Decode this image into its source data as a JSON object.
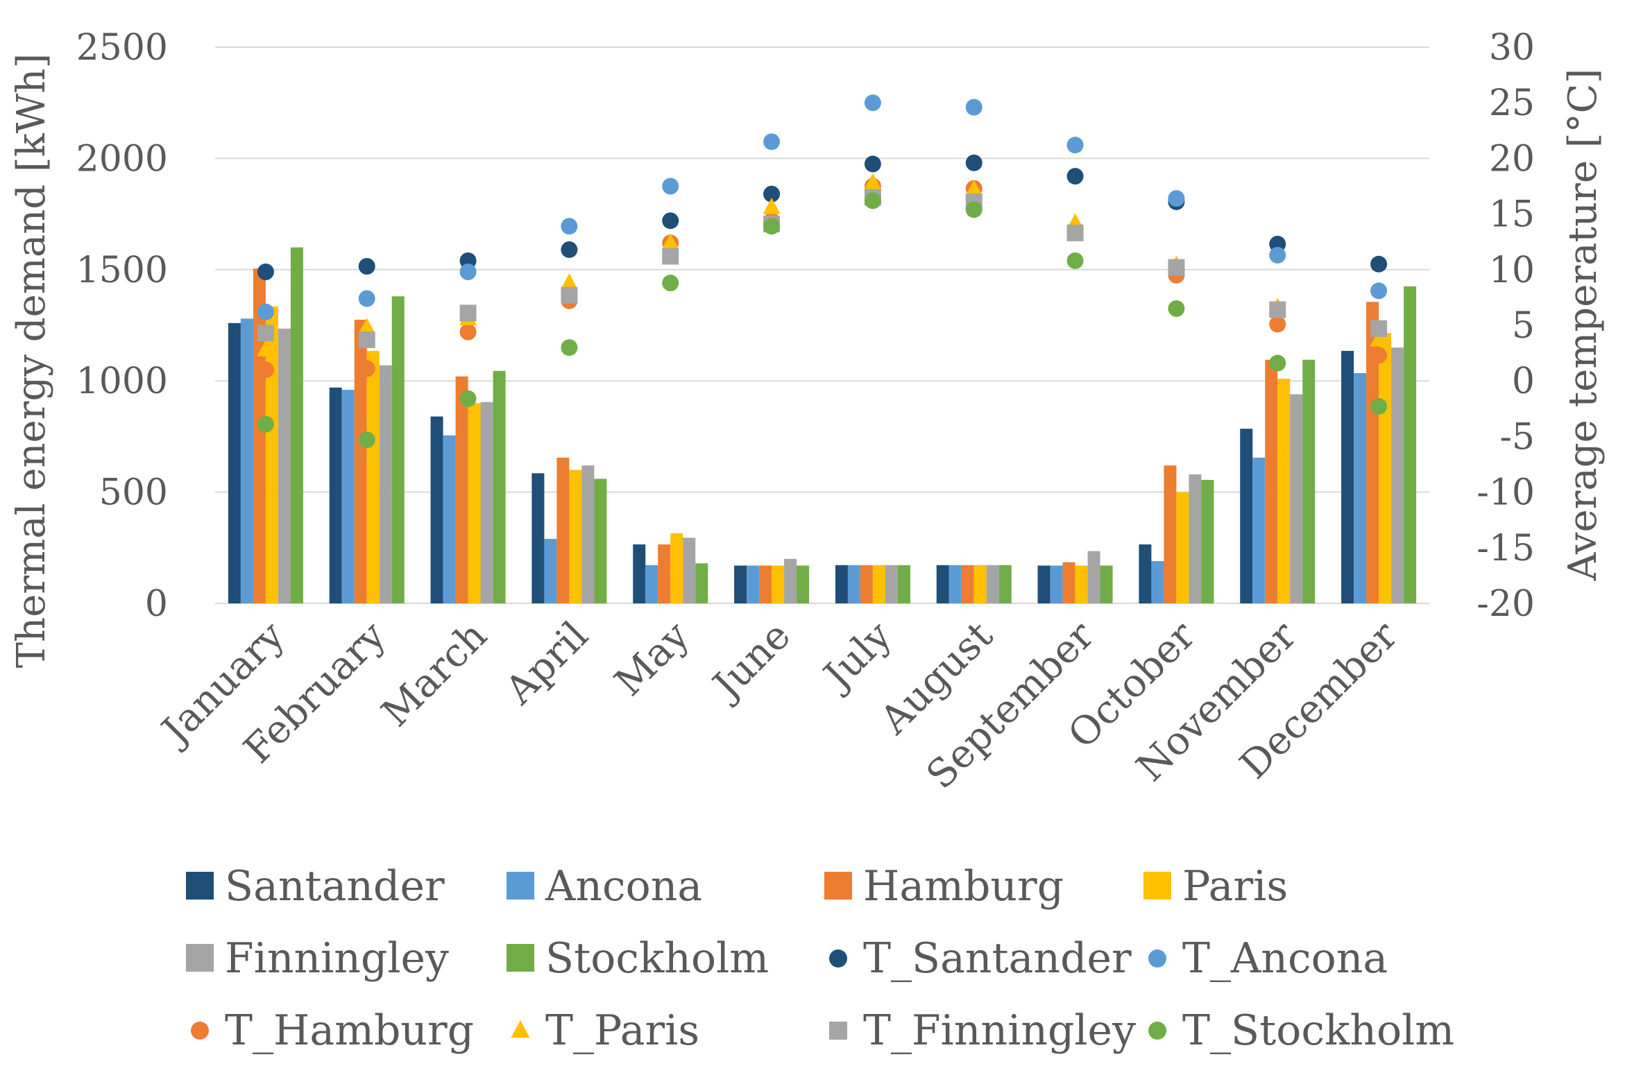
{
  "chart_data": {
    "type": "bar",
    "title": "",
    "categories": [
      "January",
      "February",
      "March",
      "April",
      "May",
      "June",
      "July",
      "August",
      "September",
      "October",
      "November",
      "December"
    ],
    "ylabel": "Thermal energy demand [kWh]",
    "y2label": "Average temperature [°C]",
    "ylim": [
      0,
      2500
    ],
    "yticks": [
      "0",
      "500",
      "1000",
      "1500",
      "2000",
      "2500"
    ],
    "y2lim": [
      -20,
      30
    ],
    "y2ticks": [
      "-20",
      "-15",
      "-10",
      "-5",
      "0",
      "5",
      "10",
      "15",
      "20",
      "25",
      "30"
    ],
    "grid": true,
    "legend_position": "bottom",
    "series": [
      {
        "name": "Santander",
        "color": "#1F4E79",
        "values": [
          1260,
          970,
          840,
          585,
          265,
          170,
          172,
          172,
          170,
          265,
          785,
          1135
        ]
      },
      {
        "name": "Ancona",
        "color": "#5B9BD5",
        "values": [
          1280,
          960,
          755,
          290,
          172,
          170,
          172,
          172,
          170,
          190,
          655,
          1035
        ]
      },
      {
        "name": "Hamburg",
        "color": "#ED7D31",
        "values": [
          1505,
          1275,
          1020,
          655,
          265,
          170,
          172,
          172,
          185,
          620,
          1095,
          1355
        ]
      },
      {
        "name": "Paris",
        "color": "#FFC000",
        "values": [
          1335,
          1135,
          900,
          600,
          315,
          170,
          172,
          172,
          170,
          500,
          1010,
          1215
        ]
      },
      {
        "name": "Finningley",
        "color": "#A5A5A5",
        "values": [
          1235,
          1070,
          905,
          620,
          295,
          200,
          172,
          172,
          235,
          580,
          940,
          1150
        ]
      },
      {
        "name": "Stockholm",
        "color": "#70AD47",
        "values": [
          1600,
          1380,
          1045,
          560,
          180,
          170,
          172,
          172,
          170,
          555,
          1095,
          1425
        ]
      }
    ],
    "temperature_series": [
      {
        "name": "T_Santander",
        "color": "#1F4E79",
        "marker": "circle",
        "values": [
          9.8,
          10.3,
          10.8,
          11.8,
          14.4,
          16.8,
          19.5,
          19.6,
          18.4,
          16.1,
          12.3,
          10.5
        ]
      },
      {
        "name": "T_Ancona",
        "color": "#5B9BD5",
        "marker": "circle",
        "values": [
          6.2,
          7.4,
          9.8,
          13.9,
          17.5,
          21.5,
          25.0,
          24.6,
          21.2,
          16.4,
          11.3,
          8.1
        ]
      },
      {
        "name": "T_Hamburg",
        "color": "#ED7D31",
        "marker": "circle",
        "values": [
          1.0,
          1.1,
          4.4,
          7.2,
          12.4,
          14.4,
          17.5,
          17.3,
          13.6,
          9.5,
          5.1,
          2.3
        ]
      },
      {
        "name": "T_Paris",
        "color": "#FFC000",
        "marker": "triangle",
        "values": [
          2.8,
          4.8,
          5.6,
          8.8,
          12.4,
          15.6,
          17.8,
          17.2,
          14.2,
          10.4,
          6.6,
          3.7
        ]
      },
      {
        "name": "T_Finningley",
        "color": "#A5A5A5",
        "marker": "square",
        "values": [
          4.3,
          3.7,
          6.1,
          7.7,
          11.2,
          14.1,
          16.5,
          16.1,
          13.3,
          10.2,
          6.4,
          4.7
        ]
      },
      {
        "name": "T_Stockholm",
        "color": "#70AD47",
        "marker": "circle",
        "values": [
          -3.9,
          -5.3,
          -1.6,
          3.0,
          8.8,
          13.9,
          16.2,
          15.4,
          10.8,
          6.5,
          1.6,
          -2.3
        ]
      }
    ]
  }
}
